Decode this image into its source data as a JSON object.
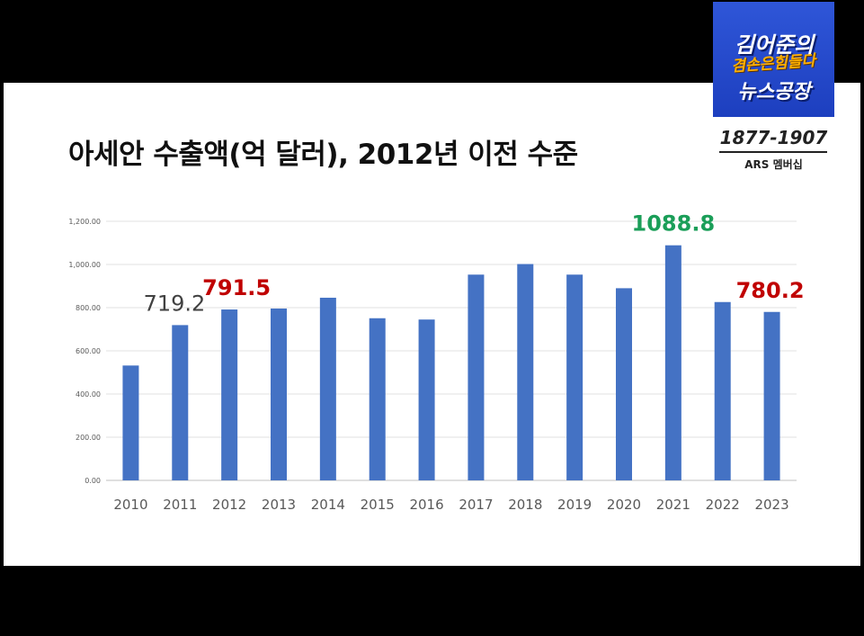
{
  "title": "아세안 수출액(억 달러), 2012년 이전 수준",
  "logo": {
    "line1": "김어준의",
    "line2": "겸손은힘들다",
    "line3": "뉴스공장",
    "bg_color": "#2f56d8",
    "accent_color": "#ffb000"
  },
  "badge": {
    "years": "1877-1907",
    "subtitle": "ARS 멤버십"
  },
  "chart_data": {
    "type": "bar",
    "title": "",
    "xlabel": "",
    "ylabel": "",
    "ylim": [
      0,
      1200
    ],
    "grid": true,
    "bar_color": "#4472c4",
    "y_ticks": [
      "0.00",
      "200.00",
      "400.00",
      "600.00",
      "800.00",
      "1,000.00",
      "1,200.00"
    ],
    "categories": [
      "2010",
      "2011",
      "2012",
      "2013",
      "2014",
      "2015",
      "2016",
      "2017",
      "2018",
      "2019",
      "2020",
      "2021",
      "2022",
      "2023"
    ],
    "values": [
      532,
      719.2,
      791.5,
      796,
      846,
      751,
      745,
      953,
      1002,
      953,
      890,
      1088.8,
      826,
      780.2
    ],
    "annotations": [
      {
        "category": "2011",
        "text": "719.2",
        "color": "#404040",
        "bold": false
      },
      {
        "category": "2012",
        "text": "791.5",
        "color": "#c00000",
        "bold": true
      },
      {
        "category": "2021",
        "text": "1088.8",
        "color": "#1a9e58",
        "bold": true
      },
      {
        "category": "2023",
        "text": "780.2",
        "color": "#c00000",
        "bold": true
      }
    ]
  }
}
